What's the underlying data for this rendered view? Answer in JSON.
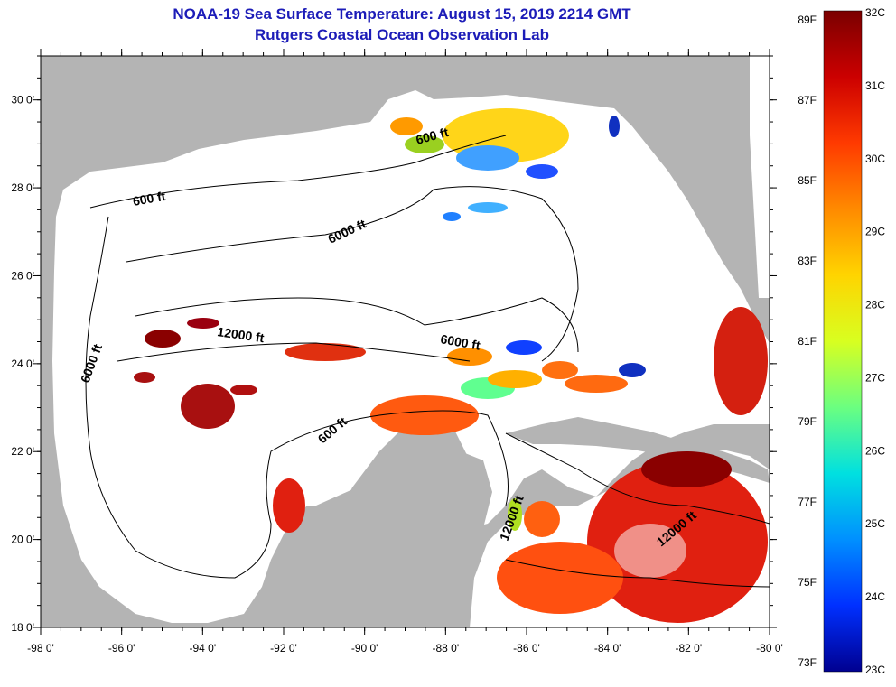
{
  "header": {
    "title": "NOAA-19 Sea Surface Temperature:  August 15, 2019 2214 GMT",
    "subtitle": "Rutgers Coastal Ocean Observation Lab"
  },
  "map": {
    "lon_range": [
      -98,
      -80
    ],
    "lat_range": [
      18,
      31
    ],
    "lon_ticks": [
      "-98 0'",
      "-96 0'",
      "-94 0'",
      "-92 0'",
      "-90 0'",
      "-88 0'",
      "-86 0'",
      "-84 0'",
      "-82 0'",
      "-80 0'"
    ],
    "lat_ticks": [
      "18 0'",
      "20 0'",
      "22 0'",
      "24 0'",
      "26 0'",
      "28 0'",
      "30 0'"
    ],
    "land_color": "#b4b4b4",
    "water_color": "#ffffff",
    "contour_labels": [
      "600 ft",
      "600 ft",
      "6000 ft",
      "6000 ft",
      "12000 ft",
      "6000 ft",
      "600 ft",
      "12000 ft",
      "12000 ft"
    ]
  },
  "colorbar": {
    "f_labels": [
      "89F",
      "87F",
      "85F",
      "83F",
      "81F",
      "79F",
      "77F",
      "75F",
      "73F"
    ],
    "c_labels": [
      "32C",
      "31C",
      "30C",
      "29C",
      "28C",
      "27C",
      "26C",
      "25C",
      "24C",
      "23C"
    ],
    "colors": [
      "#7a0000",
      "#cc0000",
      "#ff3a00",
      "#ff8a00",
      "#ffd400",
      "#d8ff20",
      "#6bff80",
      "#00e0e0",
      "#0090ff",
      "#0030ff",
      "#000090"
    ]
  }
}
